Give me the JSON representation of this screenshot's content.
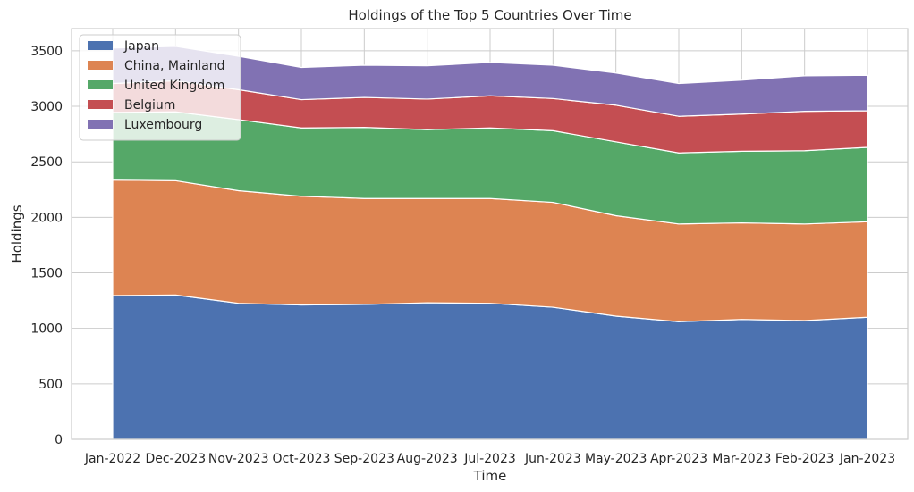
{
  "chart_data": {
    "type": "area",
    "stacked": true,
    "title": "Holdings of the Top 5 Countries Over Time",
    "xlabel": "Time",
    "ylabel": "Holdings",
    "ylim": [
      0,
      3700
    ],
    "yticks": [
      0,
      500,
      1000,
      1500,
      2000,
      2500,
      3000,
      3500
    ],
    "grid": true,
    "legend_position": "top-left",
    "categories": [
      "Jan-2022",
      "Dec-2023",
      "Nov-2023",
      "Oct-2023",
      "Sep-2023",
      "Aug-2023",
      "Jul-2023",
      "Jun-2023",
      "May-2023",
      "Apr-2023",
      "Mar-2023",
      "Feb-2023",
      "Jan-2023"
    ],
    "series": [
      {
        "name": "Japan",
        "color": "#4c72b0",
        "values": [
          1295,
          1300,
          1225,
          1210,
          1215,
          1230,
          1225,
          1190,
          1110,
          1060,
          1080,
          1070,
          1100
        ]
      },
      {
        "name": "China, Mainland",
        "color": "#dd8452",
        "values": [
          1040,
          1030,
          1015,
          980,
          955,
          940,
          945,
          945,
          905,
          880,
          870,
          870,
          860
        ]
      },
      {
        "name": "United Kingdom",
        "color": "#55a868",
        "values": [
          610,
          620,
          640,
          615,
          640,
          620,
          635,
          645,
          665,
          640,
          645,
          660,
          670
        ]
      },
      {
        "name": "Belgium",
        "color": "#c44e52",
        "values": [
          260,
          280,
          270,
          255,
          270,
          275,
          290,
          290,
          330,
          330,
          335,
          355,
          330
        ]
      },
      {
        "name": "Luxembourg",
        "color": "#8172b3",
        "values": [
          320,
          310,
          300,
          290,
          290,
          300,
          300,
          300,
          290,
          295,
          305,
          320,
          320
        ]
      }
    ]
  }
}
